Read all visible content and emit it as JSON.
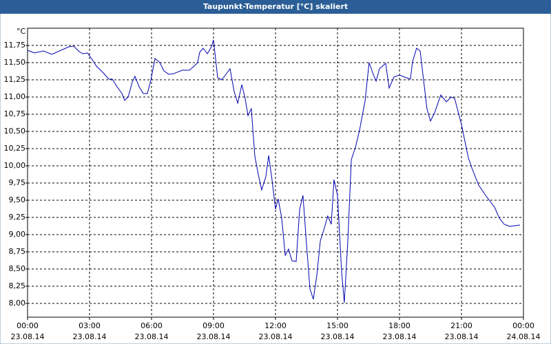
{
  "chart_data": {
    "type": "line",
    "title": "Taupunkt-Temperatur [°C] skaliert",
    "y_label": "°C",
    "color": "#0000b0",
    "grid": true,
    "xlim": [
      0,
      24
    ],
    "ylim": [
      7.8,
      12.0
    ],
    "xticks": [
      {
        "value": 0,
        "label": "00:00"
      },
      {
        "value": 3,
        "label": "03:00"
      },
      {
        "value": 6,
        "label": "06:00"
      },
      {
        "value": 9,
        "label": "09:00"
      },
      {
        "value": 12,
        "label": "12:00"
      },
      {
        "value": 15,
        "label": "15:00"
      },
      {
        "value": 18,
        "label": "18:00"
      },
      {
        "value": 21,
        "label": "21:00"
      },
      {
        "value": 24,
        "label": "00:00"
      }
    ],
    "xtick_dates": [
      "23.08.14",
      "23.08.14",
      "23.08.14",
      "23.08.14",
      "23.08.14",
      "23.08.14",
      "23.08.14",
      "23.08.14",
      "24.08.14"
    ],
    "yticks": [
      {
        "value": 8.0,
        "label": "8,00"
      },
      {
        "value": 8.25,
        "label": "8,25"
      },
      {
        "value": 8.5,
        "label": "8,50"
      },
      {
        "value": 8.75,
        "label": "8,75"
      },
      {
        "value": 9.0,
        "label": "9,00"
      },
      {
        "value": 9.25,
        "label": "9,25"
      },
      {
        "value": 9.5,
        "label": "9,50"
      },
      {
        "value": 9.75,
        "label": "9,75"
      },
      {
        "value": 10.0,
        "label": "10,00"
      },
      {
        "value": 10.25,
        "label": "10,25"
      },
      {
        "value": 10.5,
        "label": "10,50"
      },
      {
        "value": 10.75,
        "label": "10,75"
      },
      {
        "value": 11.0,
        "label": "11,00"
      },
      {
        "value": 11.25,
        "label": "11,25"
      },
      {
        "value": 11.5,
        "label": "11,50"
      },
      {
        "value": 11.75,
        "label": "11,75"
      }
    ],
    "x": [
      0,
      0.33,
      0.77,
      1.17,
      2,
      2.23,
      2.5,
      2.67,
      2.9,
      3.07,
      3.33,
      3.67,
      3.93,
      4.1,
      4.33,
      4.57,
      4.7,
      4.87,
      5.07,
      5.2,
      5.4,
      5.6,
      5.8,
      5.97,
      6.17,
      6.4,
      6.6,
      6.83,
      7.07,
      7.5,
      7.83,
      8.07,
      8.23,
      8.33,
      8.5,
      8.7,
      8.9,
      9,
      9.2,
      9.4,
      9.6,
      9.8,
      10,
      10.17,
      10.37,
      10.53,
      10.67,
      10.83,
      11,
      11.17,
      11.33,
      11.53,
      11.67,
      11.83,
      12,
      12.13,
      12.3,
      12.47,
      12.63,
      12.8,
      13,
      13.17,
      13.33,
      13.5,
      13.67,
      13.83,
      14,
      14.17,
      14.33,
      14.53,
      14.7,
      14.83,
      15,
      15.2,
      15.33,
      15.5,
      15.67,
      15.87,
      16.07,
      16.23,
      16.33,
      16.53,
      16.73,
      16.87,
      17.03,
      17.33,
      17.5,
      17.73,
      18,
      18.33,
      18.53,
      18.63,
      18.83,
      19,
      19.33,
      19.5,
      19.7,
      20,
      20.27,
      20.5,
      20.67,
      21,
      21.33,
      21.5,
      21.83,
      22.17,
      22.6,
      22.83,
      23.07,
      23.33,
      23.6,
      23.83
    ],
    "values": [
      11.68,
      11.64,
      11.67,
      11.62,
      11.73,
      11.74,
      11.66,
      11.63,
      11.64,
      11.57,
      11.45,
      11.35,
      11.26,
      11.26,
      11.15,
      11.05,
      10.95,
      11.0,
      11.22,
      11.3,
      11.15,
      11.05,
      11.05,
      11.25,
      11.56,
      11.5,
      11.38,
      11.33,
      11.34,
      11.39,
      11.39,
      11.45,
      11.5,
      11.65,
      11.71,
      11.63,
      11.73,
      11.83,
      11.28,
      11.25,
      11.33,
      11.41,
      11.08,
      10.91,
      11.18,
      10.98,
      10.73,
      10.83,
      10.14,
      9.87,
      9.65,
      9.84,
      10.15,
      9.8,
      9.37,
      9.52,
      9.24,
      8.7,
      8.79,
      8.62,
      8.61,
      9.37,
      9.57,
      8.86,
      8.21,
      8.06,
      8.41,
      8.91,
      9.06,
      9.27,
      9.15,
      9.8,
      9.57,
      8.46,
      8.01,
      8.91,
      10.09,
      10.27,
      10.52,
      10.78,
      10.93,
      11.5,
      11.33,
      11.23,
      11.41,
      11.49,
      11.13,
      11.29,
      11.32,
      11.28,
      11.26,
      11.51,
      11.71,
      11.67,
      10.83,
      10.65,
      10.77,
      11.03,
      10.93,
      11.0,
      10.98,
      10.6,
      10.12,
      9.97,
      9.72,
      9.57,
      9.4,
      9.24,
      9.15,
      9.12,
      9.13,
      9.14
    ]
  }
}
